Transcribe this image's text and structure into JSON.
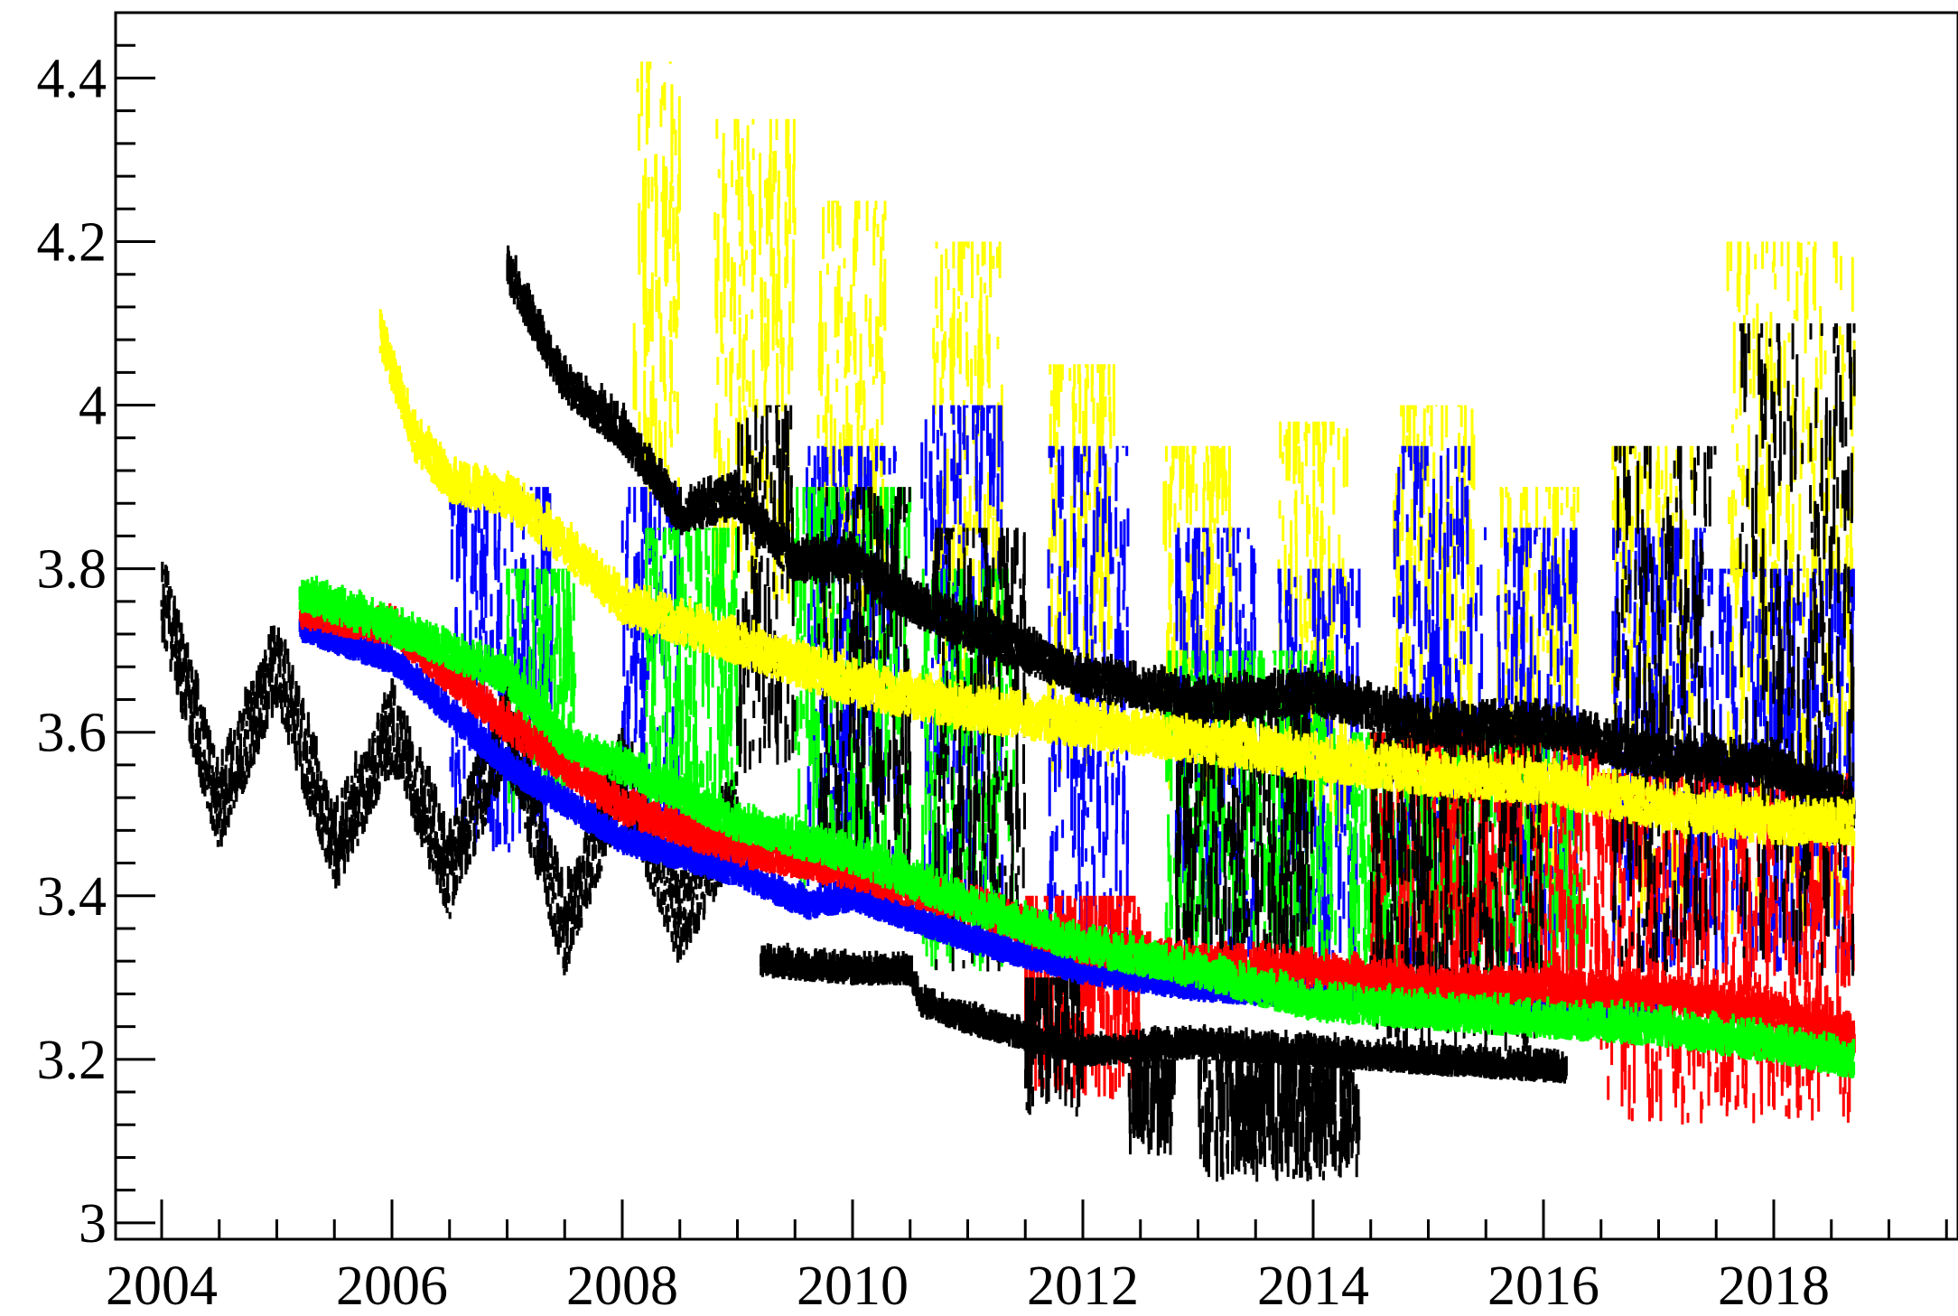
{
  "chart_data": {
    "type": "scatter",
    "title": "",
    "xlabel": "",
    "ylabel": "",
    "xlim": [
      2003.6,
      2019.6
    ],
    "ylim": [
      2.98,
      4.48
    ],
    "x_ticks": [
      2004,
      2006,
      2008,
      2010,
      2012,
      2014,
      2016,
      2018
    ],
    "x_tick_labels": [
      "2004",
      "2006",
      "2008",
      "2010",
      "2012",
      "2014",
      "2016",
      "2018"
    ],
    "y_ticks": [
      3.0,
      3.2,
      3.4,
      3.6,
      3.8,
      4.0,
      4.2,
      4.4
    ],
    "y_tick_labels": [
      "3",
      "3.2",
      "3.4",
      "3.6",
      "3.8",
      "4",
      "4.2",
      "4.4"
    ],
    "grid": false,
    "legend": "none",
    "series": [
      {
        "color": "#000000",
        "trend": [
          [
            2004.0,
            3.76
          ],
          [
            2004.5,
            3.5
          ],
          [
            2005.0,
            3.68
          ],
          [
            2005.5,
            3.45
          ],
          [
            2006.0,
            3.6
          ],
          [
            2006.5,
            3.42
          ],
          [
            2007.0,
            3.6
          ],
          [
            2007.5,
            3.35
          ],
          [
            2008.0,
            3.55
          ],
          [
            2008.5,
            3.36
          ],
          [
            2009.0,
            3.5
          ]
        ],
        "spread": 0.05
      },
      {
        "color": "#000000",
        "trend": [
          [
            2007.0,
            4.16
          ],
          [
            2007.5,
            4.02
          ],
          [
            2008.0,
            3.96
          ],
          [
            2008.5,
            3.86
          ],
          [
            2009.0,
            3.88
          ],
          [
            2009.5,
            3.8
          ],
          [
            2010.0,
            3.8
          ],
          [
            2010.5,
            3.75
          ],
          [
            2011.0,
            3.72
          ],
          [
            2012.0,
            3.66
          ],
          [
            2013.0,
            3.63
          ],
          [
            2014.0,
            3.64
          ],
          [
            2015.0,
            3.6
          ],
          [
            2016.0,
            3.6
          ],
          [
            2017.0,
            3.56
          ],
          [
            2018.0,
            3.55
          ],
          [
            2018.7,
            3.5
          ]
        ],
        "spread": 0.02
      },
      {
        "color": "#000000",
        "trend": [
          [
            2009.2,
            3.31
          ],
          [
            2010.0,
            3.3
          ],
          [
            2010.5,
            3.3
          ],
          [
            2010.6,
            3.26
          ],
          [
            2011.0,
            3.24
          ],
          [
            2012.0,
            3.2
          ],
          [
            2013.0,
            3.21
          ],
          [
            2014.0,
            3.2
          ],
          [
            2015.0,
            3.19
          ],
          [
            2016.2,
            3.18
          ]
        ],
        "spread": 0.01
      },
      {
        "color": "#0000ff",
        "trend": [
          [
            2005.2,
            3.72
          ],
          [
            2006.0,
            3.68
          ],
          [
            2007.0,
            3.55
          ],
          [
            2008.0,
            3.46
          ],
          [
            2009.0,
            3.42
          ],
          [
            2009.6,
            3.38
          ],
          [
            2010.0,
            3.39
          ],
          [
            2011.0,
            3.34
          ],
          [
            2012.0,
            3.3
          ],
          [
            2013.0,
            3.28
          ],
          [
            2014.0,
            3.27
          ],
          [
            2015.0,
            3.26
          ],
          [
            2016.0,
            3.25
          ],
          [
            2017.0,
            3.25
          ]
        ],
        "spread": 0.01
      },
      {
        "color": "#ff0000",
        "trend": [
          [
            2005.2,
            3.74
          ],
          [
            2006.0,
            3.72
          ],
          [
            2007.0,
            3.6
          ],
          [
            2008.0,
            3.5
          ],
          [
            2009.0,
            3.45
          ],
          [
            2010.0,
            3.42
          ],
          [
            2011.0,
            3.38
          ],
          [
            2012.0,
            3.33
          ],
          [
            2013.0,
            3.31
          ],
          [
            2014.0,
            3.3
          ],
          [
            2015.0,
            3.28
          ],
          [
            2016.0,
            3.28
          ],
          [
            2017.0,
            3.27
          ],
          [
            2018.0,
            3.25
          ],
          [
            2018.7,
            3.22
          ]
        ],
        "spread": 0.015
      },
      {
        "color": "#00ff00",
        "trend": [
          [
            2005.2,
            3.76
          ],
          [
            2006.0,
            3.72
          ],
          [
            2007.0,
            3.66
          ],
          [
            2007.5,
            3.58
          ],
          [
            2008.0,
            3.55
          ],
          [
            2009.0,
            3.48
          ],
          [
            2010.0,
            3.44
          ],
          [
            2011.0,
            3.38
          ],
          [
            2012.0,
            3.33
          ],
          [
            2013.0,
            3.3
          ],
          [
            2014.0,
            3.26
          ],
          [
            2015.0,
            3.25
          ],
          [
            2016.0,
            3.24
          ],
          [
            2017.0,
            3.23
          ],
          [
            2018.0,
            3.21
          ],
          [
            2018.7,
            3.19
          ]
        ],
        "spread": 0.015
      },
      {
        "color": "#ffff00",
        "trend": [
          [
            2005.9,
            4.08
          ],
          [
            2006.2,
            3.95
          ],
          [
            2006.5,
            3.9
          ],
          [
            2007.0,
            3.88
          ],
          [
            2007.5,
            3.82
          ],
          [
            2008.0,
            3.75
          ],
          [
            2009.0,
            3.7
          ],
          [
            2010.0,
            3.65
          ],
          [
            2011.0,
            3.62
          ],
          [
            2012.0,
            3.6
          ],
          [
            2013.0,
            3.58
          ],
          [
            2014.0,
            3.56
          ],
          [
            2015.0,
            3.54
          ],
          [
            2016.0,
            3.53
          ],
          [
            2017.0,
            3.5
          ],
          [
            2018.0,
            3.48
          ],
          [
            2018.7,
            3.48
          ]
        ],
        "spread": 0.02
      }
    ],
    "scatter_bursts": [
      {
        "color": "#ffff00",
        "x_range": [
          2008.1,
          2008.5
        ],
        "y_range": [
          3.85,
          4.42
        ]
      },
      {
        "color": "#ffff00",
        "x_range": [
          2008.8,
          2009.5
        ],
        "y_range": [
          3.75,
          4.35
        ]
      },
      {
        "color": "#ffff00",
        "x_range": [
          2009.7,
          2010.3
        ],
        "y_range": [
          3.65,
          4.25
        ]
      },
      {
        "color": "#ffff00",
        "x_range": [
          2010.7,
          2011.3
        ],
        "y_range": [
          3.6,
          4.2
        ]
      },
      {
        "color": "#ffff00",
        "x_range": [
          2011.7,
          2012.3
        ],
        "y_range": [
          3.55,
          4.05
        ]
      },
      {
        "color": "#ffff00",
        "x_range": [
          2012.7,
          2013.3
        ],
        "y_range": [
          3.5,
          3.95
        ]
      },
      {
        "color": "#ffff00",
        "x_range": [
          2013.7,
          2014.3
        ],
        "y_range": [
          3.45,
          3.98
        ]
      },
      {
        "color": "#ffff00",
        "x_range": [
          2014.7,
          2015.4
        ],
        "y_range": [
          3.45,
          4.0
        ]
      },
      {
        "color": "#ffff00",
        "x_range": [
          2015.6,
          2016.3
        ],
        "y_range": [
          3.4,
          3.9
        ]
      },
      {
        "color": "#ffff00",
        "x_range": [
          2016.6,
          2017.3
        ],
        "y_range": [
          3.35,
          3.95
        ]
      },
      {
        "color": "#ffff00",
        "x_range": [
          2017.6,
          2018.7
        ],
        "y_range": [
          3.35,
          4.2
        ]
      },
      {
        "color": "#0000ff",
        "x_range": [
          2006.5,
          2007.4
        ],
        "y_range": [
          3.45,
          3.9
        ]
      },
      {
        "color": "#0000ff",
        "x_range": [
          2008.0,
          2008.5
        ],
        "y_range": [
          3.45,
          3.9
        ]
      },
      {
        "color": "#0000ff",
        "x_range": [
          2009.6,
          2010.4
        ],
        "y_range": [
          3.4,
          3.95
        ]
      },
      {
        "color": "#0000ff",
        "x_range": [
          2010.6,
          2011.3
        ],
        "y_range": [
          3.35,
          4.0
        ]
      },
      {
        "color": "#0000ff",
        "x_range": [
          2011.7,
          2012.4
        ],
        "y_range": [
          3.3,
          3.95
        ]
      },
      {
        "color": "#0000ff",
        "x_range": [
          2012.8,
          2013.5
        ],
        "y_range": [
          3.3,
          3.85
        ]
      },
      {
        "color": "#0000ff",
        "x_range": [
          2013.7,
          2014.4
        ],
        "y_range": [
          3.3,
          3.8
        ]
      },
      {
        "color": "#0000ff",
        "x_range": [
          2014.7,
          2015.5
        ],
        "y_range": [
          3.3,
          3.95
        ]
      },
      {
        "color": "#0000ff",
        "x_range": [
          2015.6,
          2016.3
        ],
        "y_range": [
          3.3,
          3.85
        ]
      },
      {
        "color": "#0000ff",
        "x_range": [
          2016.6,
          2017.4
        ],
        "y_range": [
          3.3,
          3.85
        ]
      },
      {
        "color": "#0000ff",
        "x_range": [
          2017.4,
          2018.7
        ],
        "y_range": [
          3.3,
          3.8
        ]
      },
      {
        "color": "#00ff00",
        "x_range": [
          2007.0,
          2007.6
        ],
        "y_range": [
          3.5,
          3.8
        ]
      },
      {
        "color": "#00ff00",
        "x_range": [
          2008.2,
          2009.0
        ],
        "y_range": [
          3.5,
          3.85
        ]
      },
      {
        "color": "#00ff00",
        "x_range": [
          2009.5,
          2010.5
        ],
        "y_range": [
          3.4,
          3.9
        ]
      },
      {
        "color": "#00ff00",
        "x_range": [
          2010.6,
          2011.4
        ],
        "y_range": [
          3.3,
          3.8
        ]
      },
      {
        "color": "#00ff00",
        "x_range": [
          2012.7,
          2014.2
        ],
        "y_range": [
          3.3,
          3.7
        ]
      },
      {
        "color": "#00ff00",
        "x_range": [
          2014.3,
          2016.4
        ],
        "y_range": [
          3.3,
          3.6
        ]
      },
      {
        "color": "#ff0000",
        "x_range": [
          2011.5,
          2012.5
        ],
        "y_range": [
          3.15,
          3.4
        ]
      },
      {
        "color": "#ff0000",
        "x_range": [
          2014.5,
          2016.5
        ],
        "y_range": [
          3.25,
          3.6
        ]
      },
      {
        "color": "#ff0000",
        "x_range": [
          2016.5,
          2018.7
        ],
        "y_range": [
          3.12,
          3.55
        ]
      },
      {
        "color": "#000000",
        "x_range": [
          2009.0,
          2009.5
        ],
        "y_range": [
          3.55,
          4.0
        ]
      },
      {
        "color": "#000000",
        "x_range": [
          2009.7,
          2010.5
        ],
        "y_range": [
          3.4,
          3.9
        ]
      },
      {
        "color": "#000000",
        "x_range": [
          2010.7,
          2011.5
        ],
        "y_range": [
          3.3,
          3.85
        ]
      },
      {
        "color": "#000000",
        "x_range": [
          2011.5,
          2012.0
        ],
        "y_range": [
          3.13,
          3.3
        ]
      },
      {
        "color": "#000000",
        "x_range": [
          2012.4,
          2012.8
        ],
        "y_range": [
          3.08,
          3.2
        ]
      },
      {
        "color": "#000000",
        "x_range": [
          2012.8,
          2014.0
        ],
        "y_range": [
          3.3,
          3.65
        ]
      },
      {
        "color": "#000000",
        "x_range": [
          2013.0,
          2014.4
        ],
        "y_range": [
          3.05,
          3.2
        ]
      },
      {
        "color": "#000000",
        "x_range": [
          2014.5,
          2016.0
        ],
        "y_range": [
          3.2,
          3.6
        ]
      },
      {
        "color": "#000000",
        "x_range": [
          2016.6,
          2017.5
        ],
        "y_range": [
          3.3,
          3.95
        ]
      },
      {
        "color": "#000000",
        "x_range": [
          2017.7,
          2018.7
        ],
        "y_range": [
          3.3,
          4.1
        ]
      }
    ]
  }
}
